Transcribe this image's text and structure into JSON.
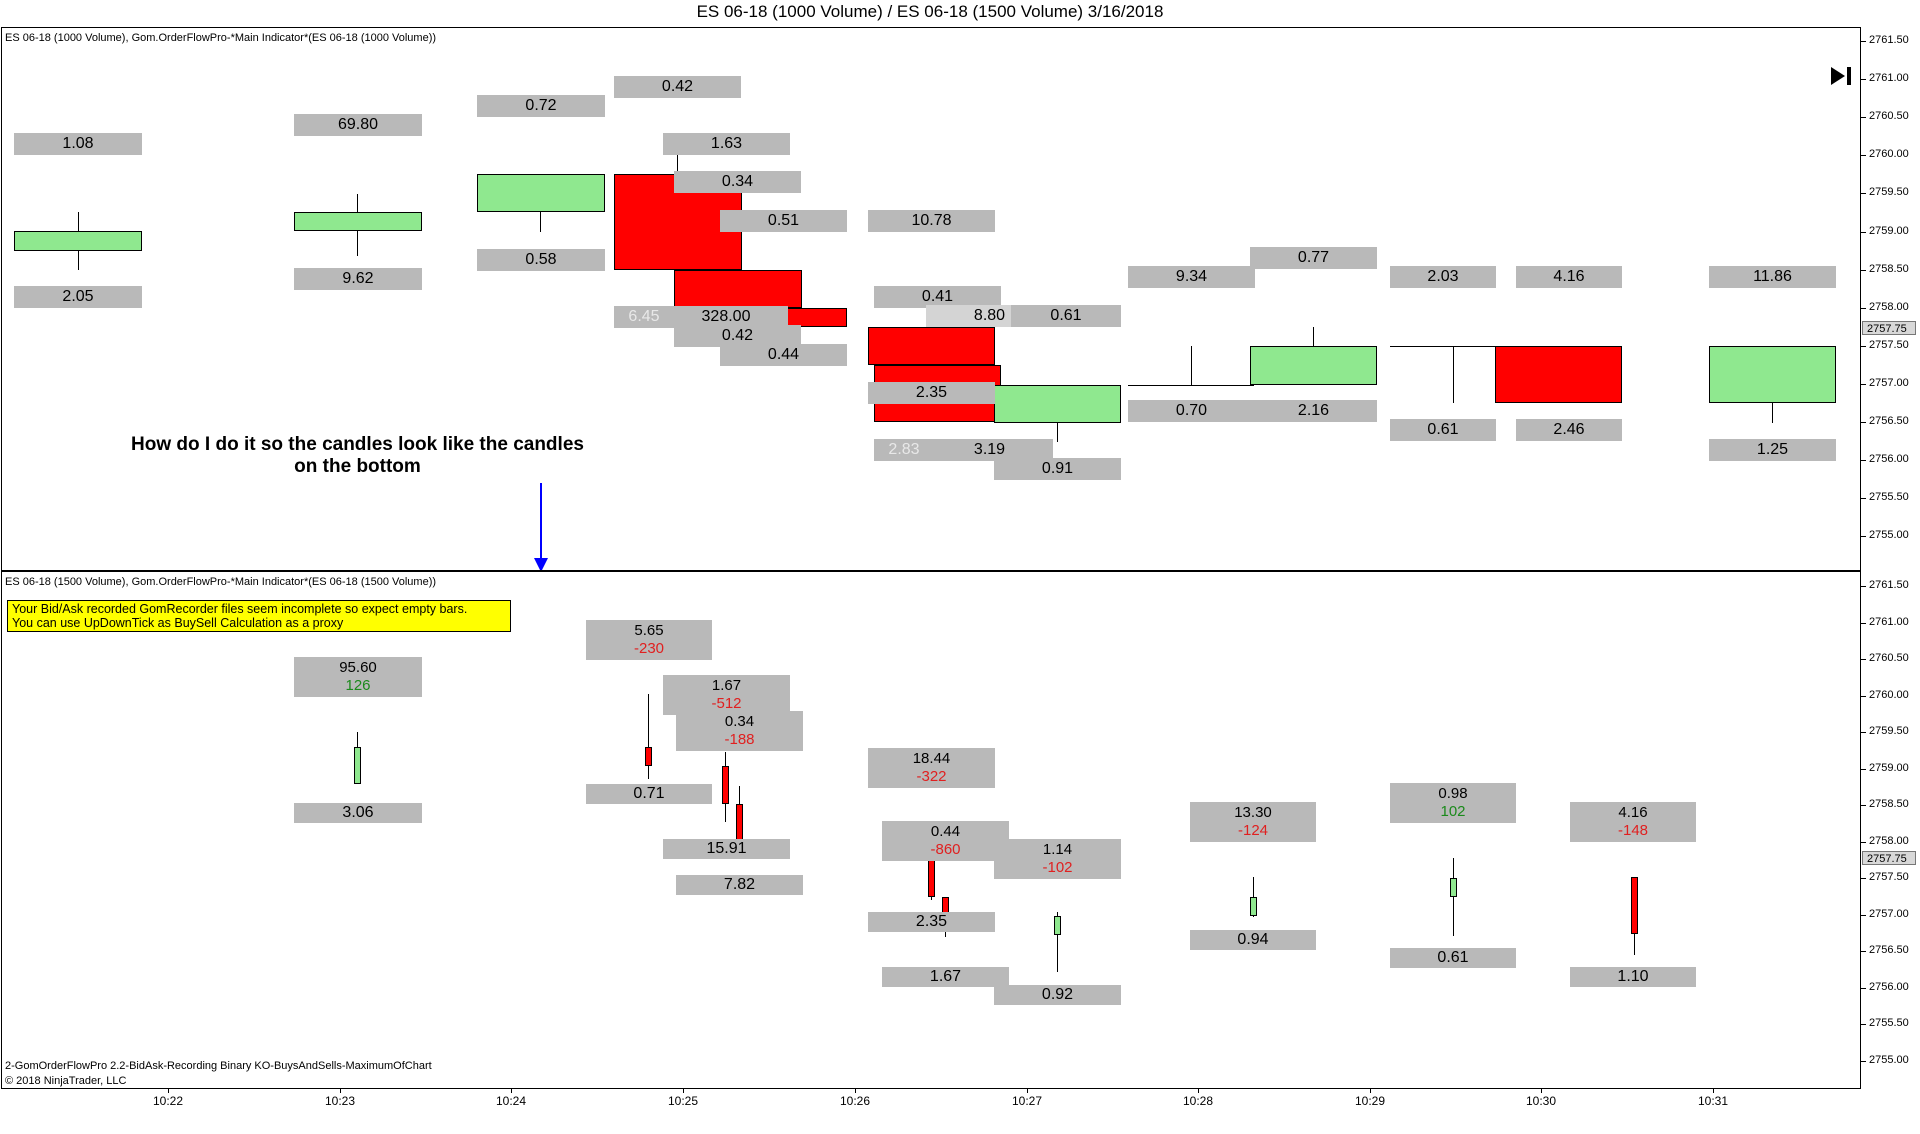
{
  "window_title": "ES 06-18 (1000 Volume) / ES 06-18 (1500 Volume)  3/16/2018",
  "top_panel": {
    "label": "ES 06-18 (1000 Volume), Gom.OrderFlowPro-*Main Indicator*(ES 06-18 (1000 Volume))",
    "annotation_line1": "How do I do it so the candles look like the candles",
    "annotation_line2": "on the bottom",
    "boxes": [
      "1.08",
      "2.05",
      "69.80",
      "9.62",
      "0.72",
      "0.58",
      "0.42",
      "1.63",
      "0.34",
      "0.51",
      "6.45",
      "328.00",
      "0.42",
      "0.44",
      "10.78",
      "0.41",
      "8.80",
      "0.61",
      "2.35",
      "2.83",
      "3.19",
      "0.91",
      "9.34",
      "0.70",
      "0.77",
      "2.16",
      "2.03",
      "4.16",
      "0.61",
      "2.46",
      "11.86",
      "1.25"
    ]
  },
  "bottom_panel": {
    "label": "ES 06-18 (1500 Volume), Gom.OrderFlowPro-*Main Indicator*(ES 06-18 (1500 Volume))",
    "warning_line1": "Your Bid/Ask recorded GomRecorder files seem incomplete so expect empty bars.",
    "warning_line2": "You can use UpDownTick as BuySell Calculation as a proxy",
    "boxes_pairs": [
      {
        "v": "95.60",
        "d": "126"
      },
      {
        "v": "5.65",
        "d": "-230"
      },
      {
        "v": "1.67",
        "d": "-512"
      },
      {
        "v": "0.34",
        "d": "-188"
      },
      {
        "v": "18.44",
        "d": "-322"
      },
      {
        "v": "0.44",
        "d": "-860"
      },
      {
        "v": "1.14",
        "d": "-102"
      },
      {
        "v": "13.30",
        "d": "-124"
      },
      {
        "v": "0.98",
        "d": "102"
      },
      {
        "v": "4.16",
        "d": "-148"
      }
    ],
    "boxes_single": [
      "3.06",
      "0.71",
      "15.91",
      "7.82",
      "2.35",
      "1.67",
      "0.92",
      "0.94",
      "0.61",
      "1.10"
    ],
    "footer_line1": "2-GomOrderFlowPro 2.2-BidAsk-Recording Binary KO-BuysAndSells-MaximumOfChart",
    "footer_line2": "© 2018 NinjaTrader, LLC"
  },
  "price_axis_labels": [
    "2761.50",
    "2761.00",
    "2760.50",
    "2760.00",
    "2759.50",
    "2759.00",
    "2758.50",
    "2758.00",
    "2757.50",
    "2757.00",
    "2756.50",
    "2756.00",
    "2755.50",
    "2755.00"
  ],
  "current_price": "2757.75",
  "time_axis_labels": [
    "10:22",
    "10:23",
    "10:24",
    "10:25",
    "10:26",
    "10:27",
    "10:28",
    "10:29",
    "10:30",
    "10:31"
  ],
  "colors": {
    "up": "#8fe88f",
    "down": "#ff0000",
    "box": "#b9b9b9",
    "warning": "#ffff00",
    "arrow": "#0000ff"
  },
  "icons": {
    "play_to_end": "skip-to-end-icon"
  }
}
